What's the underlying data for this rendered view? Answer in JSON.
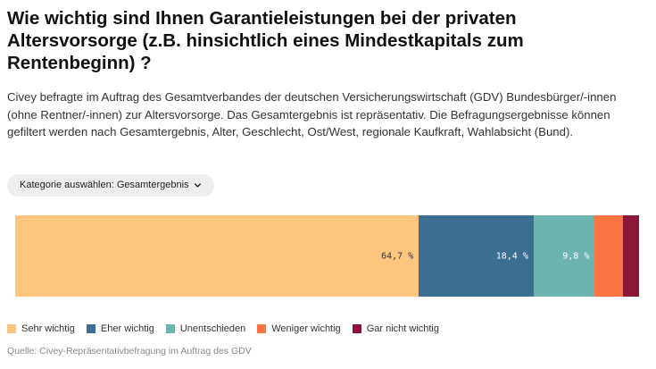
{
  "title": "Wie wichtig sind Ihnen Garantieleistungen bei der privaten Altersvorsorge (z.B. hinsichtlich eines Mindestkapitals zum Rentenbeginn) ?",
  "description": "Civey befragte im Auftrag des Gesamtverbandes der deutschen Versicherungswirtschaft (GDV) Bundesbürger/-innen (ohne Rentner/-innen) zur Altersvorsorge. Das Gesamtergebnis ist repräsentativ. Die Befragungsergebnisse können gefiltert werden nach Gesamtergebnis, Alter, Geschlecht, Ost/West, regionale Kaufkraft, Wahlabsicht (Bund).",
  "filter": {
    "label": "Kategorie auswählen: Gesamtergebnis"
  },
  "source": "Quelle: Civey-Repräsentativbefragung im Auftrag des GDV",
  "chart_data": {
    "type": "bar",
    "orientation": "horizontal-stacked",
    "legend_position": "bottom",
    "series": [
      {
        "name": "Sehr wichtig",
        "value": 64.7,
        "label": "64,7 %",
        "color": "#fdc57d",
        "label_color": "#333333"
      },
      {
        "name": "Eher wichtig",
        "value": 18.4,
        "label": "18,4 %",
        "color": "#3b6e93",
        "label_color": "#ffffff"
      },
      {
        "name": "Unentschieden",
        "value": 9.8,
        "label": "9,8 %",
        "color": "#6db4b0",
        "label_color": "#ffffff"
      },
      {
        "name": "Weniger wichtig",
        "value": 4.5,
        "label": "",
        "color": "#fc7442",
        "label_color": "#ffffff"
      },
      {
        "name": "Gar nicht wichtig",
        "value": 2.6,
        "label": "",
        "color": "#8c1838",
        "label_color": "#ffffff"
      }
    ]
  }
}
